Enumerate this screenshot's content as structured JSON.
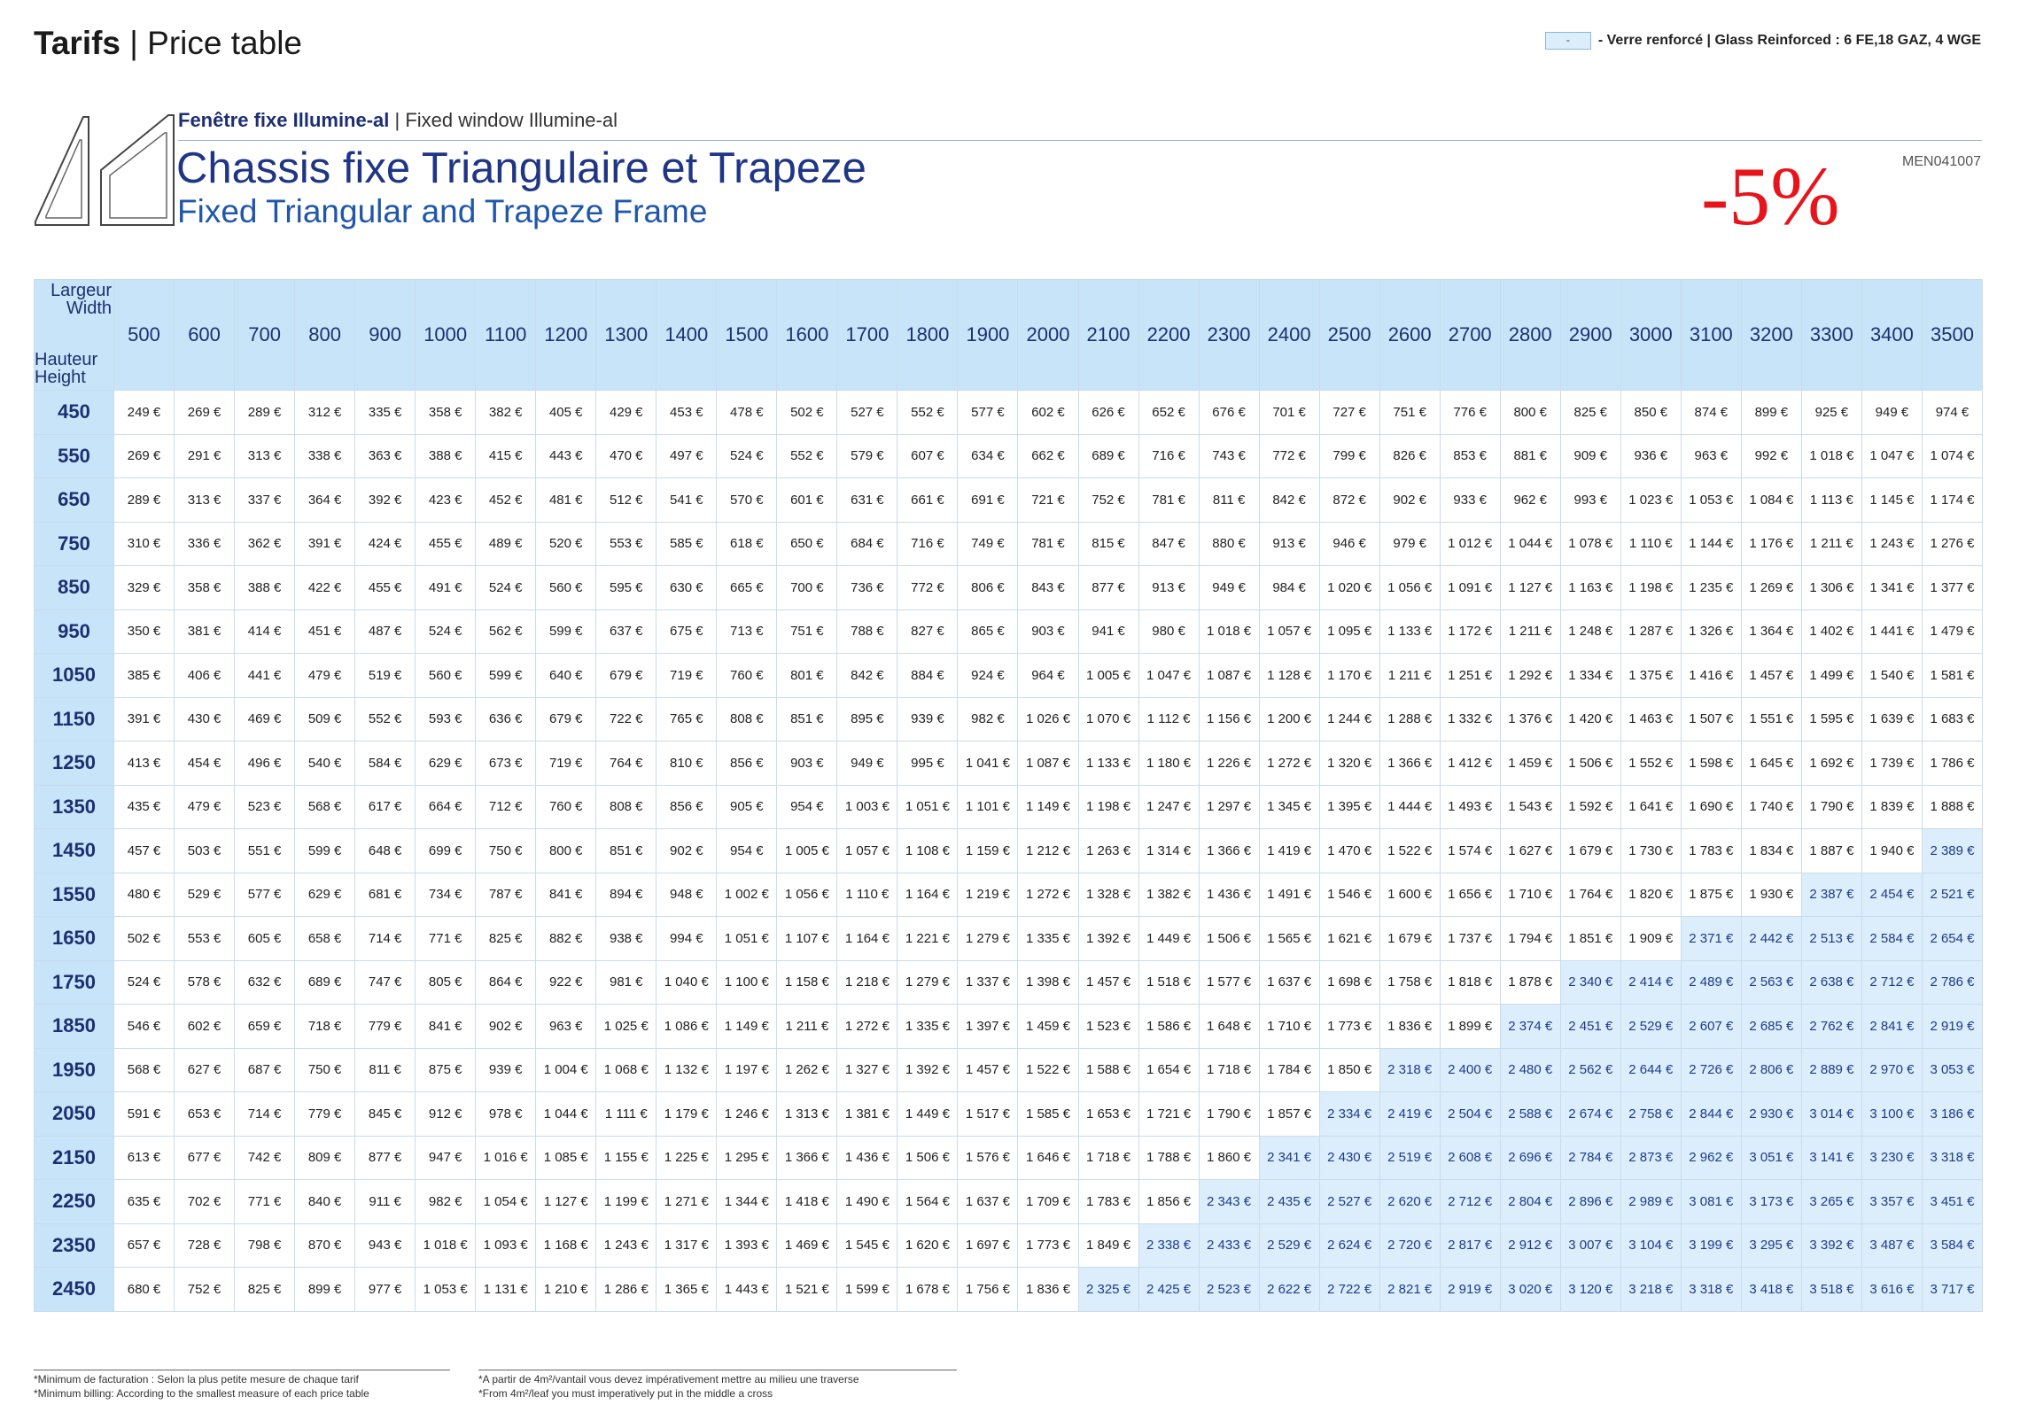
{
  "header": {
    "title_bold": "Tarifs",
    "title_rest": " | Price table"
  },
  "legend": {
    "swatch_label": "-",
    "text": "- Verre renforcé | Glass Reinforced : 6 FE,18 GAZ, 4 WGE",
    "highlight_color": "#dceefb"
  },
  "product": {
    "subtitle_fr": "Fenêtre fixe Illumine-al",
    "subtitle_en": " | Fixed window Illumine-al",
    "title_fr": "Chassis fixe Triangulaire et Trapeze",
    "title_en": "Fixed Triangular and Trapeze Frame",
    "discount": "-5%",
    "reference": "MEN041007",
    "icon": "triangle-trapeze-window-icon"
  },
  "colors": {
    "title_blue": "#1f3586",
    "accent_blue": "#2057a8",
    "discount_red": "#e8141b",
    "header_bg": "#c8e4f8"
  },
  "table": {
    "corner_width_label": "Largeur\nWidth",
    "corner_height_label": "Hauteur\nHeight",
    "widths": [
      "500",
      "600",
      "700",
      "800",
      "900",
      "1000",
      "1100",
      "1200",
      "1300",
      "1400",
      "1500",
      "1600",
      "1700",
      "1800",
      "1900",
      "2000",
      "2100",
      "2200",
      "2300",
      "2400",
      "2500",
      "2600",
      "2700",
      "2800",
      "2900",
      "3000",
      "3100",
      "3200",
      "3300",
      "3400",
      "3500"
    ],
    "rows": [
      {
        "height": "450",
        "prices": [
          "249 €",
          "269 €",
          "289 €",
          "312 €",
          "335 €",
          "358 €",
          "382 €",
          "405 €",
          "429 €",
          "453 €",
          "478 €",
          "502 €",
          "527 €",
          "552 €",
          "577 €",
          "602 €",
          "626 €",
          "652 €",
          "676 €",
          "701 €",
          "727 €",
          "751 €",
          "776 €",
          "800 €",
          "825 €",
          "850 €",
          "874 €",
          "899 €",
          "925 €",
          "949 €",
          "974 €"
        ],
        "glass_from": 31
      },
      {
        "height": "550",
        "prices": [
          "269 €",
          "291 €",
          "313 €",
          "338 €",
          "363 €",
          "388 €",
          "415 €",
          "443 €",
          "470 €",
          "497 €",
          "524 €",
          "552 €",
          "579 €",
          "607 €",
          "634 €",
          "662 €",
          "689 €",
          "716 €",
          "743 €",
          "772 €",
          "799 €",
          "826 €",
          "853 €",
          "881 €",
          "909 €",
          "936 €",
          "963 €",
          "992 €",
          "1 018 €",
          "1 047 €",
          "1 074 €"
        ],
        "glass_from": 31
      },
      {
        "height": "650",
        "prices": [
          "289 €",
          "313 €",
          "337 €",
          "364 €",
          "392 €",
          "423 €",
          "452 €",
          "481 €",
          "512 €",
          "541 €",
          "570 €",
          "601 €",
          "631 €",
          "661 €",
          "691 €",
          "721 €",
          "752 €",
          "781 €",
          "811 €",
          "842 €",
          "872 €",
          "902 €",
          "933 €",
          "962 €",
          "993 €",
          "1 023 €",
          "1 053 €",
          "1 084 €",
          "1 113 €",
          "1 145 €",
          "1 174 €"
        ],
        "glass_from": 31
      },
      {
        "height": "750",
        "prices": [
          "310 €",
          "336 €",
          "362 €",
          "391 €",
          "424 €",
          "455 €",
          "489 €",
          "520 €",
          "553 €",
          "585 €",
          "618 €",
          "650 €",
          "684 €",
          "716 €",
          "749 €",
          "781 €",
          "815 €",
          "847 €",
          "880 €",
          "913 €",
          "946 €",
          "979 €",
          "1 012 €",
          "1 044 €",
          "1 078 €",
          "1 110 €",
          "1 144 €",
          "1 176 €",
          "1 211 €",
          "1 243 €",
          "1 276 €"
        ],
        "glass_from": 31
      },
      {
        "height": "850",
        "prices": [
          "329 €",
          "358 €",
          "388 €",
          "422 €",
          "455 €",
          "491 €",
          "524 €",
          "560 €",
          "595 €",
          "630 €",
          "665 €",
          "700 €",
          "736 €",
          "772 €",
          "806 €",
          "843 €",
          "877 €",
          "913 €",
          "949 €",
          "984 €",
          "1 020 €",
          "1 056 €",
          "1 091 €",
          "1 127 €",
          "1 163 €",
          "1 198 €",
          "1 235 €",
          "1 269 €",
          "1 306 €",
          "1 341 €",
          "1 377 €"
        ],
        "glass_from": 31
      },
      {
        "height": "950",
        "prices": [
          "350 €",
          "381 €",
          "414 €",
          "451 €",
          "487 €",
          "524 €",
          "562 €",
          "599 €",
          "637 €",
          "675 €",
          "713 €",
          "751 €",
          "788 €",
          "827 €",
          "865 €",
          "903 €",
          "941 €",
          "980 €",
          "1 018 €",
          "1 057 €",
          "1 095 €",
          "1 133 €",
          "1 172 €",
          "1 211 €",
          "1 248 €",
          "1 287 €",
          "1 326 €",
          "1 364 €",
          "1 402 €",
          "1 441 €",
          "1 479 €"
        ],
        "glass_from": 31
      },
      {
        "height": "1050",
        "prices": [
          "385 €",
          "406 €",
          "441 €",
          "479 €",
          "519 €",
          "560 €",
          "599 €",
          "640 €",
          "679 €",
          "719 €",
          "760 €",
          "801 €",
          "842 €",
          "884 €",
          "924 €",
          "964 €",
          "1 005 €",
          "1 047 €",
          "1 087 €",
          "1 128 €",
          "1 170 €",
          "1 211 €",
          "1 251 €",
          "1 292 €",
          "1 334 €",
          "1 375 €",
          "1 416 €",
          "1 457 €",
          "1 499 €",
          "1 540 €",
          "1 581 €"
        ],
        "glass_from": 31
      },
      {
        "height": "1150",
        "prices": [
          "391 €",
          "430 €",
          "469 €",
          "509 €",
          "552 €",
          "593 €",
          "636 €",
          "679 €",
          "722 €",
          "765 €",
          "808 €",
          "851 €",
          "895 €",
          "939 €",
          "982 €",
          "1 026 €",
          "1 070 €",
          "1 112 €",
          "1 156 €",
          "1 200 €",
          "1 244 €",
          "1 288 €",
          "1 332 €",
          "1 376 €",
          "1 420 €",
          "1 463 €",
          "1 507 €",
          "1 551 €",
          "1 595 €",
          "1 639 €",
          "1 683 €"
        ],
        "glass_from": 31
      },
      {
        "height": "1250",
        "prices": [
          "413 €",
          "454 €",
          "496 €",
          "540 €",
          "584 €",
          "629 €",
          "673 €",
          "719 €",
          "764 €",
          "810 €",
          "856 €",
          "903 €",
          "949 €",
          "995 €",
          "1 041 €",
          "1 087 €",
          "1 133 €",
          "1 180 €",
          "1 226 €",
          "1 272 €",
          "1 320 €",
          "1 366 €",
          "1 412 €",
          "1 459 €",
          "1 506 €",
          "1 552 €",
          "1 598 €",
          "1 645 €",
          "1 692 €",
          "1 739 €",
          "1 786 €"
        ],
        "glass_from": 31
      },
      {
        "height": "1350",
        "prices": [
          "435 €",
          "479 €",
          "523 €",
          "568 €",
          "617 €",
          "664 €",
          "712 €",
          "760 €",
          "808 €",
          "856 €",
          "905 €",
          "954 €",
          "1 003 €",
          "1 051 €",
          "1 101 €",
          "1 149 €",
          "1 198 €",
          "1 247 €",
          "1 297 €",
          "1 345 €",
          "1 395 €",
          "1 444 €",
          "1 493 €",
          "1 543 €",
          "1 592 €",
          "1 641 €",
          "1 690 €",
          "1 740 €",
          "1 790 €",
          "1 839 €",
          "1 888 €"
        ],
        "glass_from": 31
      },
      {
        "height": "1450",
        "prices": [
          "457 €",
          "503 €",
          "551 €",
          "599 €",
          "648 €",
          "699 €",
          "750 €",
          "800 €",
          "851 €",
          "902 €",
          "954 €",
          "1 005 €",
          "1 057 €",
          "1 108 €",
          "1 159 €",
          "1 212 €",
          "1 263 €",
          "1 314 €",
          "1 366 €",
          "1 419 €",
          "1 470 €",
          "1 522 €",
          "1 574 €",
          "1 627 €",
          "1 679 €",
          "1 730 €",
          "1 783 €",
          "1 834 €",
          "1 887 €",
          "1 940 €",
          "2 389 €"
        ],
        "glass_from": 30
      },
      {
        "height": "1550",
        "prices": [
          "480 €",
          "529 €",
          "577 €",
          "629 €",
          "681 €",
          "734 €",
          "787 €",
          "841 €",
          "894 €",
          "948 €",
          "1 002 €",
          "1 056 €",
          "1 110 €",
          "1 164 €",
          "1 219 €",
          "1 272 €",
          "1 328 €",
          "1 382 €",
          "1 436 €",
          "1 491 €",
          "1 546 €",
          "1 600 €",
          "1 656 €",
          "1 710 €",
          "1 764 €",
          "1 820 €",
          "1 875 €",
          "1 930 €",
          "2 387 €",
          "2 454 €",
          "2 521 €"
        ],
        "glass_from": 28
      },
      {
        "height": "1650",
        "prices": [
          "502 €",
          "553 €",
          "605 €",
          "658 €",
          "714 €",
          "771 €",
          "825 €",
          "882 €",
          "938 €",
          "994 €",
          "1 051 €",
          "1 107 €",
          "1 164 €",
          "1 221 €",
          "1 279 €",
          "1 335 €",
          "1 392 €",
          "1 449 €",
          "1 506 €",
          "1 565 €",
          "1 621 €",
          "1 679 €",
          "1 737 €",
          "1 794 €",
          "1 851 €",
          "1 909 €",
          "2 371 €",
          "2 442 €",
          "2 513 €",
          "2 584 €",
          "2 654 €"
        ],
        "glass_from": 26
      },
      {
        "height": "1750",
        "prices": [
          "524 €",
          "578 €",
          "632 €",
          "689 €",
          "747 €",
          "805 €",
          "864 €",
          "922 €",
          "981 €",
          "1 040 €",
          "1 100 €",
          "1 158 €",
          "1 218 €",
          "1 279 €",
          "1 337 €",
          "1 398 €",
          "1 457 €",
          "1 518 €",
          "1 577 €",
          "1 637 €",
          "1 698 €",
          "1 758 €",
          "1 818 €",
          "1 878 €",
          "2 340 €",
          "2 414 €",
          "2 489 €",
          "2 563 €",
          "2 638 €",
          "2 712 €",
          "2 786 €"
        ],
        "glass_from": 24
      },
      {
        "height": "1850",
        "prices": [
          "546 €",
          "602 €",
          "659 €",
          "718 €",
          "779 €",
          "841 €",
          "902 €",
          "963 €",
          "1 025 €",
          "1 086 €",
          "1 149 €",
          "1 211 €",
          "1 272 €",
          "1 335 €",
          "1 397 €",
          "1 459 €",
          "1 523 €",
          "1 586 €",
          "1 648 €",
          "1 710 €",
          "1 773 €",
          "1 836 €",
          "1 899 €",
          "2 374 €",
          "2 451 €",
          "2 529 €",
          "2 607 €",
          "2 685 €",
          "2 762 €",
          "2 841 €",
          "2 919 €"
        ],
        "glass_from": 23
      },
      {
        "height": "1950",
        "prices": [
          "568 €",
          "627 €",
          "687 €",
          "750 €",
          "811 €",
          "875 €",
          "939 €",
          "1 004 €",
          "1 068 €",
          "1 132 €",
          "1 197 €",
          "1 262 €",
          "1 327 €",
          "1 392 €",
          "1 457 €",
          "1 522 €",
          "1 588 €",
          "1 654 €",
          "1 718 €",
          "1 784 €",
          "1 850 €",
          "2 318 €",
          "2 400 €",
          "2 480 €",
          "2 562 €",
          "2 644 €",
          "2 726 €",
          "2 806 €",
          "2 889 €",
          "2 970 €",
          "3 053 €"
        ],
        "glass_from": 21
      },
      {
        "height": "2050",
        "prices": [
          "591 €",
          "653 €",
          "714 €",
          "779 €",
          "845 €",
          "912 €",
          "978 €",
          "1 044 €",
          "1 111 €",
          "1 179 €",
          "1 246 €",
          "1 313 €",
          "1 381 €",
          "1 449 €",
          "1 517 €",
          "1 585 €",
          "1 653 €",
          "1 721 €",
          "1 790 €",
          "1 857 €",
          "2 334 €",
          "2 419 €",
          "2 504 €",
          "2 588 €",
          "2 674 €",
          "2 758 €",
          "2 844 €",
          "2 930 €",
          "3 014 €",
          "3 100 €",
          "3 186 €"
        ],
        "glass_from": 20
      },
      {
        "height": "2150",
        "prices": [
          "613 €",
          "677 €",
          "742 €",
          "809 €",
          "877 €",
          "947 €",
          "1 016 €",
          "1 085 €",
          "1 155 €",
          "1 225 €",
          "1 295 €",
          "1 366 €",
          "1 436 €",
          "1 506 €",
          "1 576 €",
          "1 646 €",
          "1 718 €",
          "1 788 €",
          "1 860 €",
          "2 341 €",
          "2 430 €",
          "2 519 €",
          "2 608 €",
          "2 696 €",
          "2 784 €",
          "2 873 €",
          "2 962 €",
          "3 051 €",
          "3 141 €",
          "3 230 €",
          "3 318 €"
        ],
        "glass_from": 19
      },
      {
        "height": "2250",
        "prices": [
          "635 €",
          "702 €",
          "771 €",
          "840 €",
          "911 €",
          "982 €",
          "1 054 €",
          "1 127 €",
          "1 199 €",
          "1 271 €",
          "1 344 €",
          "1 418 €",
          "1 490 €",
          "1 564 €",
          "1 637 €",
          "1 709 €",
          "1 783 €",
          "1 856 €",
          "2 343 €",
          "2 435 €",
          "2 527 €",
          "2 620 €",
          "2 712 €",
          "2 804 €",
          "2 896 €",
          "2 989 €",
          "3 081 €",
          "3 173 €",
          "3 265 €",
          "3 357 €",
          "3 451 €"
        ],
        "glass_from": 18
      },
      {
        "height": "2350",
        "prices": [
          "657 €",
          "728 €",
          "798 €",
          "870 €",
          "943 €",
          "1 018 €",
          "1 093 €",
          "1 168 €",
          "1 243 €",
          "1 317 €",
          "1 393 €",
          "1 469 €",
          "1 545 €",
          "1 620 €",
          "1 697 €",
          "1 773 €",
          "1 849 €",
          "2 338 €",
          "2 433 €",
          "2 529 €",
          "2 624 €",
          "2 720 €",
          "2 817 €",
          "2 912 €",
          "3 007 €",
          "3 104 €",
          "3 199 €",
          "3 295 €",
          "3 392 €",
          "3 487 €",
          "3 584 €"
        ],
        "glass_from": 17
      },
      {
        "height": "2450",
        "prices": [
          "680 €",
          "752 €",
          "825 €",
          "899 €",
          "977 €",
          "1 053 €",
          "1 131 €",
          "1 210 €",
          "1 286 €",
          "1 365 €",
          "1 443 €",
          "1 521 €",
          "1 599 €",
          "1 678 €",
          "1 756 €",
          "1 836 €",
          "2 325 €",
          "2 425 €",
          "2 523 €",
          "2 622 €",
          "2 722 €",
          "2 821 €",
          "2 919 €",
          "3 020 €",
          "3 120 €",
          "3 218 €",
          "3 318 €",
          "3 418 €",
          "3 518 €",
          "3 616 €",
          "3 717 €"
        ],
        "glass_from": 16
      }
    ]
  },
  "footnotes": {
    "left_fr": "*Minimum de facturation : Selon la plus petite mesure de chaque tarif",
    "left_en": "*Minimum billing: According to the smallest measure of each price table",
    "right_fr": "*A partir de 4m²/vantail vous devez impérativement mettre au milieu une traverse",
    "right_en": "*From 4m²/leaf you must imperatively put in the middle a cross"
  }
}
